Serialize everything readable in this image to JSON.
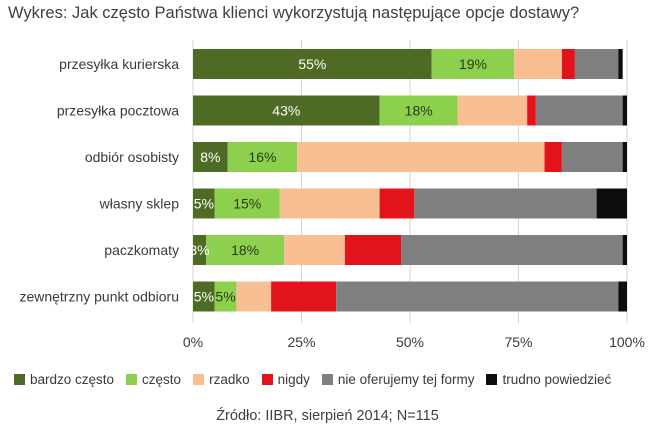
{
  "chart_data": {
    "type": "bar",
    "orientation": "horizontal",
    "stacked": true,
    "title": "Wykres: Jak często Państwa klienci wykorzystują następujące opcje dostawy?",
    "source": "Źródło: IIBR, sierpień 2014; N=115",
    "categories": [
      "przesyłka kurierska",
      "przesyłka pocztowa",
      "odbiór osobisty",
      "własny sklep",
      "paczkomaty",
      "zewnętrzny punkt odbioru"
    ],
    "xlim": [
      0,
      100
    ],
    "xticks": [
      "0%",
      "25%",
      "50%",
      "75%",
      "100%"
    ],
    "grid": true,
    "legend_position": "bottom",
    "series": [
      {
        "name": "bardzo często",
        "color": "#4e6b25",
        "values": [
          55,
          43,
          8,
          5,
          3,
          5
        ],
        "labels": [
          "55%",
          "43%",
          "8%",
          "5%",
          "3%",
          "5%"
        ],
        "label_color": "light"
      },
      {
        "name": "często",
        "color": "#8cd04e",
        "values": [
          19,
          18,
          16,
          15,
          18,
          5
        ],
        "labels": [
          "19%",
          "18%",
          "16%",
          "15%",
          "18%",
          "5%"
        ],
        "label_color": "dark"
      },
      {
        "name": "rzadko",
        "color": "#f8bf93",
        "values": [
          11,
          16,
          57,
          23,
          14,
          8
        ],
        "labels": [
          "",
          "",
          "",
          "",
          "",
          ""
        ]
      },
      {
        "name": "nigdy",
        "color": "#e3131b",
        "values": [
          3,
          2,
          4,
          8,
          13,
          15
        ],
        "labels": [
          "",
          "",
          "",
          "",
          "",
          ""
        ]
      },
      {
        "name": "nie oferujemy tej formy",
        "color": "#7f7f7f",
        "values": [
          10,
          20,
          14,
          42,
          51,
          65
        ],
        "labels": [
          "",
          "",
          "",
          "",
          "",
          ""
        ]
      },
      {
        "name": "trudno powiedzieć",
        "color": "#0d0d0d",
        "values": [
          1,
          1,
          1,
          7,
          1,
          2
        ],
        "labels": [
          "",
          "",
          "",
          "",
          "",
          ""
        ]
      }
    ]
  }
}
